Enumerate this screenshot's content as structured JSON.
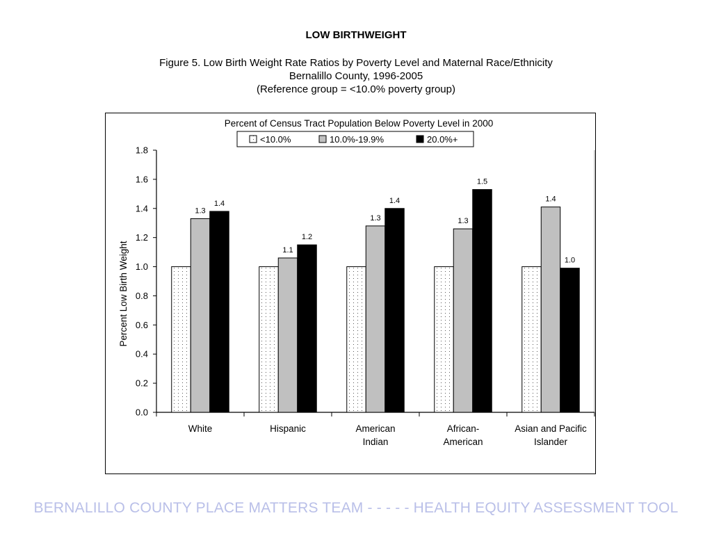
{
  "page": {
    "main_title": "LOW BIRTHWEIGHT",
    "figure_line_1": "Figure 5. Low Birth Weight Rate Ratios by Poverty Level and Maternal Race/Ethnicity",
    "figure_line_2": "Bernalillo County, 1996-2005",
    "figure_line_3": "(Reference group = <10.0% poverty group)",
    "footer": "BERNALILLO COUNTY PLACE MATTERS TEAM  -  -  -  -  -  HEALTH EQUITY ASSESSMENT TOOL",
    "footer_color": "#b9bfe8"
  },
  "chart_data": {
    "type": "bar",
    "title": "Percent of Census Tract Population Below Poverty Level in 2000",
    "ylabel": "Percent Low Birth Weight",
    "xlabel": "",
    "ylim": [
      0,
      1.8
    ],
    "yticks": [
      "0.0",
      "0.2",
      "0.4",
      "0.6",
      "0.8",
      "1.0",
      "1.2",
      "1.4",
      "1.6",
      "1.8"
    ],
    "categories": [
      [
        "White"
      ],
      [
        "Hispanic"
      ],
      [
        "American",
        "Indian"
      ],
      [
        "African-",
        "American"
      ],
      [
        "Asian and Pacific",
        "Islander"
      ]
    ],
    "legend_position": "top-center",
    "series": [
      {
        "name": "<10.0%",
        "pattern": "dotted",
        "color": "#ffffff",
        "values": [
          1.0,
          1.0,
          1.0,
          1.0,
          1.0
        ],
        "labels": [
          "",
          "",
          "",
          "",
          ""
        ]
      },
      {
        "name": "10.0%-19.9%",
        "pattern": "solid",
        "color": "#c0c0c0",
        "values": [
          1.33,
          1.06,
          1.28,
          1.26,
          1.41
        ],
        "labels": [
          "1.3",
          "1.1",
          "1.3",
          "1.3",
          "1.4"
        ]
      },
      {
        "name": "20.0%+",
        "pattern": "solid",
        "color": "#000000",
        "values": [
          1.38,
          1.15,
          1.4,
          1.53,
          0.99
        ],
        "labels": [
          "1.4",
          "1.2",
          "1.4",
          "1.5",
          "1.0"
        ]
      }
    ]
  }
}
